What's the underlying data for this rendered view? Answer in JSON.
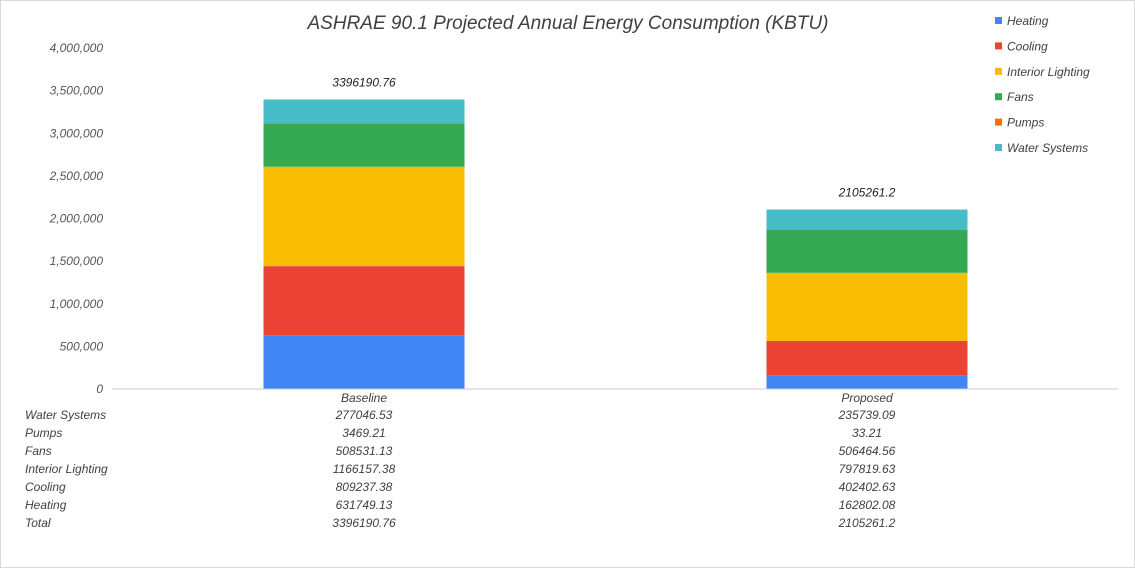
{
  "chart_data": {
    "type": "bar",
    "stacked": true,
    "title": "ASHRAE 90.1 Projected Annual Energy Consumption (KBTU)",
    "categories": [
      "Baseline",
      "Proposed"
    ],
    "series": [
      {
        "name": "Heating",
        "color": "#4285f4",
        "values": [
          631749.13,
          162802.08
        ]
      },
      {
        "name": "Cooling",
        "color": "#ea4335",
        "values": [
          809237.38,
          402402.63
        ]
      },
      {
        "name": "Interior Lighting",
        "color": "#fbbc04",
        "values": [
          1166157.38,
          797819.63
        ]
      },
      {
        "name": "Fans",
        "color": "#34a853",
        "values": [
          508531.13,
          506464.56
        ]
      },
      {
        "name": "Pumps",
        "color": "#ff6d01",
        "values": [
          3469.21,
          33.21
        ]
      },
      {
        "name": "Water Systems",
        "color": "#46bdc6",
        "values": [
          277046.53,
          235739.09
        ]
      }
    ],
    "totals": [
      3396190.76,
      2105261.2
    ],
    "total_labels": [
      "3396190.76",
      "2105261.2"
    ],
    "ylim": [
      0,
      4000000
    ],
    "y_ticks": [
      0,
      500000,
      1000000,
      1500000,
      2000000,
      2500000,
      3000000,
      3500000,
      4000000
    ],
    "y_tick_labels": [
      "0",
      "500,000",
      "1,000,000",
      "1,500,000",
      "2,000,000",
      "2,500,000",
      "3,000,000",
      "3,500,000",
      "4,000,000"
    ],
    "legend_position": "top-right",
    "grid": false,
    "data_table": {
      "rows": [
        {
          "label": "Water Systems",
          "values": [
            "277046.53",
            "235739.09"
          ]
        },
        {
          "label": "Pumps",
          "values": [
            "3469.21",
            "33.21"
          ]
        },
        {
          "label": "Fans",
          "values": [
            "508531.13",
            "506464.56"
          ]
        },
        {
          "label": "Interior Lighting",
          "values": [
            "1166157.38",
            "797819.63"
          ]
        },
        {
          "label": "Cooling",
          "values": [
            "809237.38",
            "402402.63"
          ]
        },
        {
          "label": "Heating",
          "values": [
            "631749.13",
            "162802.08"
          ]
        },
        {
          "label": "Total",
          "values": [
            "3396190.76",
            "2105261.2"
          ]
        }
      ]
    }
  }
}
